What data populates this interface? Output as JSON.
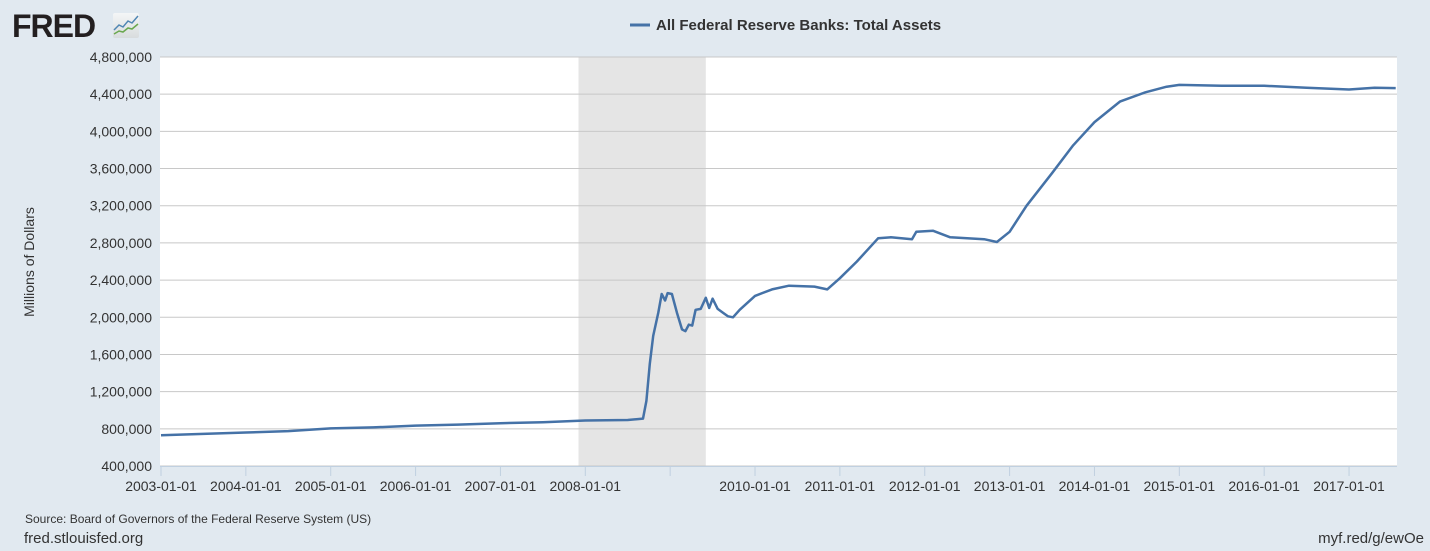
{
  "logo_text": "FRED",
  "source": "Source: Board of Governors of the Federal Reserve System (US)",
  "site": "fred.stlouisfed.org",
  "short_url": "myf.red/g/ewOe",
  "colors": {
    "line": "#4572a7",
    "background": "#e1e9f0",
    "recession": "#e5e5e5"
  },
  "chart_data": {
    "type": "line",
    "title": "All Federal Reserve Banks: Total Assets",
    "legend": "All Federal Reserve Banks: Total Assets",
    "legend_position": "top-center",
    "xlabel": "",
    "ylabel": "Millions of Dollars",
    "ylim": [
      400000,
      4800000
    ],
    "xlim": [
      2003.0,
      2017.55
    ],
    "grid": true,
    "y_ticks": [
      "400,000",
      "800,000",
      "1,200,000",
      "1,600,000",
      "2,000,000",
      "2,400,000",
      "2,800,000",
      "3,200,000",
      "3,600,000",
      "4,000,000",
      "4,400,000",
      "4,800,000"
    ],
    "x_ticks": [
      {
        "year": 2003,
        "label": "2003-01-01"
      },
      {
        "year": 2004,
        "label": "2004-01-01"
      },
      {
        "year": 2005,
        "label": "2005-01-01"
      },
      {
        "year": 2006,
        "label": "2006-01-01"
      },
      {
        "year": 2007,
        "label": "2007-01-01"
      },
      {
        "year": 2008,
        "label": "2008-01-01"
      },
      {
        "year": 2009,
        "label": ""
      },
      {
        "year": 2010,
        "label": "2010-01-01"
      },
      {
        "year": 2011,
        "label": "2011-01-01"
      },
      {
        "year": 2012,
        "label": "2012-01-01"
      },
      {
        "year": 2013,
        "label": "2013-01-01"
      },
      {
        "year": 2014,
        "label": "2014-01-01"
      },
      {
        "year": 2015,
        "label": "2015-01-01"
      },
      {
        "year": 2016,
        "label": "2016-01-01"
      },
      {
        "year": 2017,
        "label": "2017-01-01"
      }
    ],
    "recession": [
      2007.92,
      2009.42
    ],
    "series": [
      {
        "name": "All Federal Reserve Banks: Total Assets",
        "points": [
          [
            2003.0,
            730000
          ],
          [
            2003.5,
            745000
          ],
          [
            2004.0,
            760000
          ],
          [
            2004.5,
            775000
          ],
          [
            2005.0,
            805000
          ],
          [
            2005.5,
            815000
          ],
          [
            2006.0,
            835000
          ],
          [
            2006.5,
            845000
          ],
          [
            2007.0,
            860000
          ],
          [
            2007.5,
            870000
          ],
          [
            2008.0,
            890000
          ],
          [
            2008.5,
            895000
          ],
          [
            2008.68,
            910000
          ],
          [
            2008.72,
            1100000
          ],
          [
            2008.76,
            1500000
          ],
          [
            2008.8,
            1800000
          ],
          [
            2008.86,
            2050000
          ],
          [
            2008.9,
            2250000
          ],
          [
            2008.94,
            2180000
          ],
          [
            2008.97,
            2260000
          ],
          [
            2009.02,
            2250000
          ],
          [
            2009.08,
            2050000
          ],
          [
            2009.14,
            1870000
          ],
          [
            2009.18,
            1850000
          ],
          [
            2009.22,
            1920000
          ],
          [
            2009.26,
            1910000
          ],
          [
            2009.3,
            2080000
          ],
          [
            2009.36,
            2090000
          ],
          [
            2009.42,
            2210000
          ],
          [
            2009.46,
            2100000
          ],
          [
            2009.5,
            2200000
          ],
          [
            2009.56,
            2090000
          ],
          [
            2009.62,
            2050000
          ],
          [
            2009.68,
            2010000
          ],
          [
            2009.74,
            2000000
          ],
          [
            2009.82,
            2080000
          ],
          [
            2010.0,
            2230000
          ],
          [
            2010.2,
            2300000
          ],
          [
            2010.4,
            2340000
          ],
          [
            2010.7,
            2330000
          ],
          [
            2010.85,
            2300000
          ],
          [
            2011.0,
            2420000
          ],
          [
            2011.2,
            2600000
          ],
          [
            2011.45,
            2850000
          ],
          [
            2011.6,
            2860000
          ],
          [
            2011.85,
            2840000
          ],
          [
            2011.9,
            2920000
          ],
          [
            2012.1,
            2930000
          ],
          [
            2012.3,
            2860000
          ],
          [
            2012.7,
            2840000
          ],
          [
            2012.85,
            2810000
          ],
          [
            2013.0,
            2920000
          ],
          [
            2013.2,
            3200000
          ],
          [
            2013.5,
            3550000
          ],
          [
            2013.75,
            3850000
          ],
          [
            2014.0,
            4100000
          ],
          [
            2014.3,
            4320000
          ],
          [
            2014.6,
            4420000
          ],
          [
            2014.85,
            4480000
          ],
          [
            2015.0,
            4500000
          ],
          [
            2015.5,
            4490000
          ],
          [
            2016.0,
            4490000
          ],
          [
            2016.5,
            4470000
          ],
          [
            2017.0,
            4450000
          ],
          [
            2017.3,
            4470000
          ],
          [
            2017.55,
            4465000
          ]
        ]
      }
    ]
  }
}
